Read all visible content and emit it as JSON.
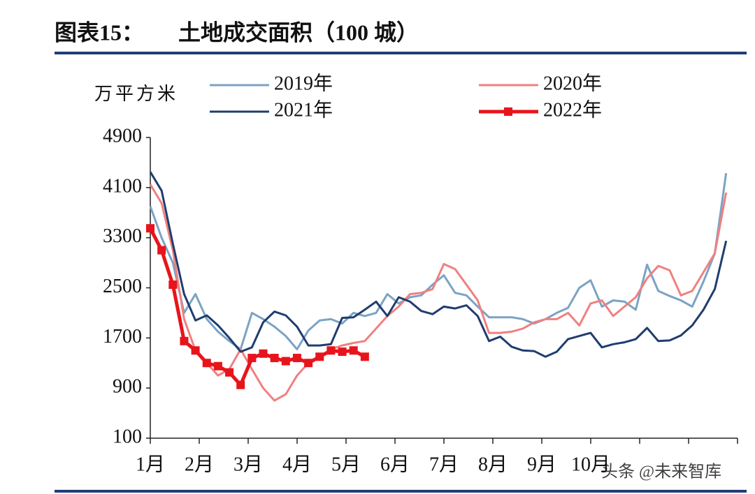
{
  "chart_data": {
    "type": "line",
    "title": "图表15：",
    "subtitle": "土地成交面积（100 城）",
    "ylabel": "万平方米",
    "watermark": "头条 @未来智库",
    "categories": [
      "1月",
      "2月",
      "3月",
      "4月",
      "5月",
      "6月",
      "7月",
      "8月",
      "9月",
      "10月",
      null,
      null
    ],
    "x": [
      1,
      2,
      3,
      4,
      5,
      6,
      7,
      8,
      9,
      10,
      11,
      12,
      13,
      14,
      15,
      16,
      17,
      18,
      19,
      20,
      21,
      22,
      23,
      24,
      25,
      26,
      27,
      28,
      29,
      30,
      31,
      32,
      33,
      34,
      35,
      36,
      37,
      38,
      39,
      40,
      41,
      42,
      43,
      44,
      45,
      46,
      47,
      48,
      49,
      50,
      51,
      52
    ],
    "ylim": [
      100,
      4900
    ],
    "yticks": [
      100,
      900,
      1700,
      2500,
      3300,
      4100,
      4900
    ],
    "series": [
      {
        "name": "2019年",
        "color": "#7ba3c4",
        "values": [
          3800,
          3300,
          2900,
          2100,
          2400,
          2000,
          1800,
          1650,
          1520,
          2100,
          2000,
          1880,
          1730,
          1520,
          1820,
          1980,
          2000,
          1930,
          2100,
          2050,
          2100,
          2400,
          2250,
          2350,
          2380,
          2550,
          2700,
          2420,
          2380,
          2200,
          2030,
          2030,
          2030,
          2000,
          1930,
          2000,
          2100,
          2180,
          2500,
          2620,
          2200,
          2300,
          2280,
          2150,
          2870,
          2450,
          2370,
          2300,
          2200,
          2600,
          3050,
          4330
        ]
      },
      {
        "name": "2020年",
        "color": "#f08080",
        "values": [
          4150,
          3850,
          3100,
          2000,
          1500,
          1300,
          1100,
          1200,
          1520,
          1200,
          900,
          700,
          800,
          1100,
          1300,
          1400,
          1520,
          1580,
          1620,
          1650,
          1850,
          2050,
          2200,
          2400,
          2420,
          2480,
          2880,
          2800,
          2550,
          2300,
          1780,
          1780,
          1800,
          1850,
          1950,
          2000,
          2000,
          2100,
          1900,
          2250,
          2300,
          2050,
          2200,
          2350,
          2650,
          2850,
          2780,
          2380,
          2450,
          2750,
          3050,
          4020
        ]
      },
      {
        "name": "2021年",
        "color": "#1f3d6e",
        "values": [
          4350,
          4050,
          3200,
          2400,
          1980,
          2060,
          1900,
          1700,
          1480,
          1550,
          1950,
          2120,
          2060,
          1880,
          1580,
          1580,
          1600,
          2020,
          2030,
          2150,
          2280,
          2050,
          2350,
          2280,
          2130,
          2080,
          2200,
          2170,
          2220,
          2050,
          1650,
          1720,
          1560,
          1500,
          1490,
          1400,
          1480,
          1680,
          1730,
          1780,
          1550,
          1600,
          1630,
          1680,
          1860,
          1650,
          1660,
          1740,
          1900,
          2150,
          2480,
          3250
        ]
      },
      {
        "name": "2022年",
        "color": "#e8141c",
        "markers": true,
        "values": [
          3450,
          3100,
          2550,
          1650,
          1500,
          1300,
          1250,
          1150,
          950,
          1380,
          1450,
          1380,
          1330,
          1380,
          1300,
          1400,
          1500,
          1480,
          1500,
          1400,
          null,
          null,
          null,
          null,
          null,
          null,
          null,
          null,
          null,
          null,
          null,
          null,
          null,
          null,
          null,
          null,
          null,
          null,
          null,
          null,
          null,
          null,
          null,
          null,
          null,
          null,
          null,
          null,
          null,
          null,
          null,
          null
        ]
      }
    ]
  }
}
